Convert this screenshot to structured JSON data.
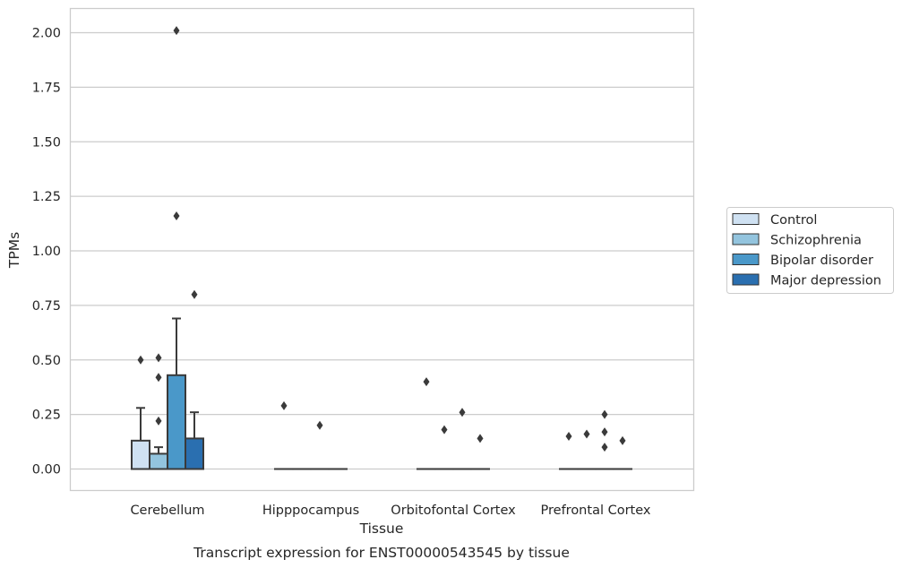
{
  "chart_data": {
    "type": "boxplot",
    "xlabel": "Tissue",
    "ylabel": "TPMs",
    "caption": "Transcript expression for ENST00000543545 by tissue",
    "ylim": [
      -0.1,
      2.11
    ],
    "yticks": [
      0.0,
      0.25,
      0.5,
      0.75,
      1.0,
      1.25,
      1.5,
      1.75,
      2.0
    ],
    "ytick_labels": [
      "0.00",
      "0.25",
      "0.50",
      "0.75",
      "1.00",
      "1.25",
      "1.50",
      "1.75",
      "2.00"
    ],
    "grid": "horizontal",
    "legend_position": "right",
    "categories": [
      "Cerebellum",
      "Hipppocampus",
      "Orbitofontal Cortex",
      "Prefrontal Cortex"
    ],
    "series": [
      {
        "name": "Control",
        "color": "#cfe1f2",
        "boxes": [
          {
            "q1": 0.0,
            "median": 0.0,
            "q3": 0.13,
            "whisker_low": 0.0,
            "whisker_high": 0.28,
            "outliers": [
              0.5
            ]
          },
          {
            "q1": 0.0,
            "median": 0.0,
            "q3": 0.0,
            "whisker_low": 0.0,
            "whisker_high": 0.0,
            "outliers": [
              0.29
            ]
          },
          {
            "q1": 0.0,
            "median": 0.0,
            "q3": 0.0,
            "whisker_low": 0.0,
            "whisker_high": 0.0,
            "outliers": [
              0.4
            ]
          },
          {
            "q1": 0.0,
            "median": 0.0,
            "q3": 0.0,
            "whisker_low": 0.0,
            "whisker_high": 0.0,
            "outliers": [
              0.15
            ]
          }
        ]
      },
      {
        "name": "Schizophrenia",
        "color": "#93c4de",
        "boxes": [
          {
            "q1": 0.0,
            "median": 0.0,
            "q3": 0.07,
            "whisker_low": 0.0,
            "whisker_high": 0.1,
            "outliers": [
              0.22,
              0.42,
              0.51
            ]
          },
          {
            "q1": 0.0,
            "median": 0.0,
            "q3": 0.0,
            "whisker_low": 0.0,
            "whisker_high": 0.0,
            "outliers": []
          },
          {
            "q1": 0.0,
            "median": 0.0,
            "q3": 0.0,
            "whisker_low": 0.0,
            "whisker_high": 0.0,
            "outliers": [
              0.18
            ]
          },
          {
            "q1": 0.0,
            "median": 0.0,
            "q3": 0.0,
            "whisker_low": 0.0,
            "whisker_high": 0.0,
            "outliers": [
              0.16
            ]
          }
        ]
      },
      {
        "name": "Bipolar disorder",
        "color": "#4a98c9",
        "boxes": [
          {
            "q1": 0.0,
            "median": 0.0,
            "q3": 0.43,
            "whisker_low": 0.0,
            "whisker_high": 0.69,
            "outliers": [
              1.16,
              2.01
            ]
          },
          {
            "q1": 0.0,
            "median": 0.0,
            "q3": 0.0,
            "whisker_low": 0.0,
            "whisker_high": 0.0,
            "outliers": [
              0.2
            ]
          },
          {
            "q1": 0.0,
            "median": 0.0,
            "q3": 0.0,
            "whisker_low": 0.0,
            "whisker_high": 0.0,
            "outliers": [
              0.26
            ]
          },
          {
            "q1": 0.0,
            "median": 0.0,
            "q3": 0.0,
            "whisker_low": 0.0,
            "whisker_high": 0.0,
            "outliers": [
              0.1,
              0.17,
              0.25
            ]
          }
        ]
      },
      {
        "name": "Major depression",
        "color": "#2a6fb0",
        "boxes": [
          {
            "q1": 0.0,
            "median": 0.0,
            "q3": 0.14,
            "whisker_low": 0.0,
            "whisker_high": 0.26,
            "outliers": [
              0.8
            ]
          },
          {
            "q1": 0.0,
            "median": 0.0,
            "q3": 0.0,
            "whisker_low": 0.0,
            "whisker_high": 0.0,
            "outliers": []
          },
          {
            "q1": 0.0,
            "median": 0.0,
            "q3": 0.0,
            "whisker_low": 0.0,
            "whisker_high": 0.0,
            "outliers": [
              0.14
            ]
          },
          {
            "q1": 0.0,
            "median": 0.0,
            "q3": 0.0,
            "whisker_low": 0.0,
            "whisker_high": 0.0,
            "outliers": [
              0.13
            ]
          }
        ]
      }
    ]
  }
}
